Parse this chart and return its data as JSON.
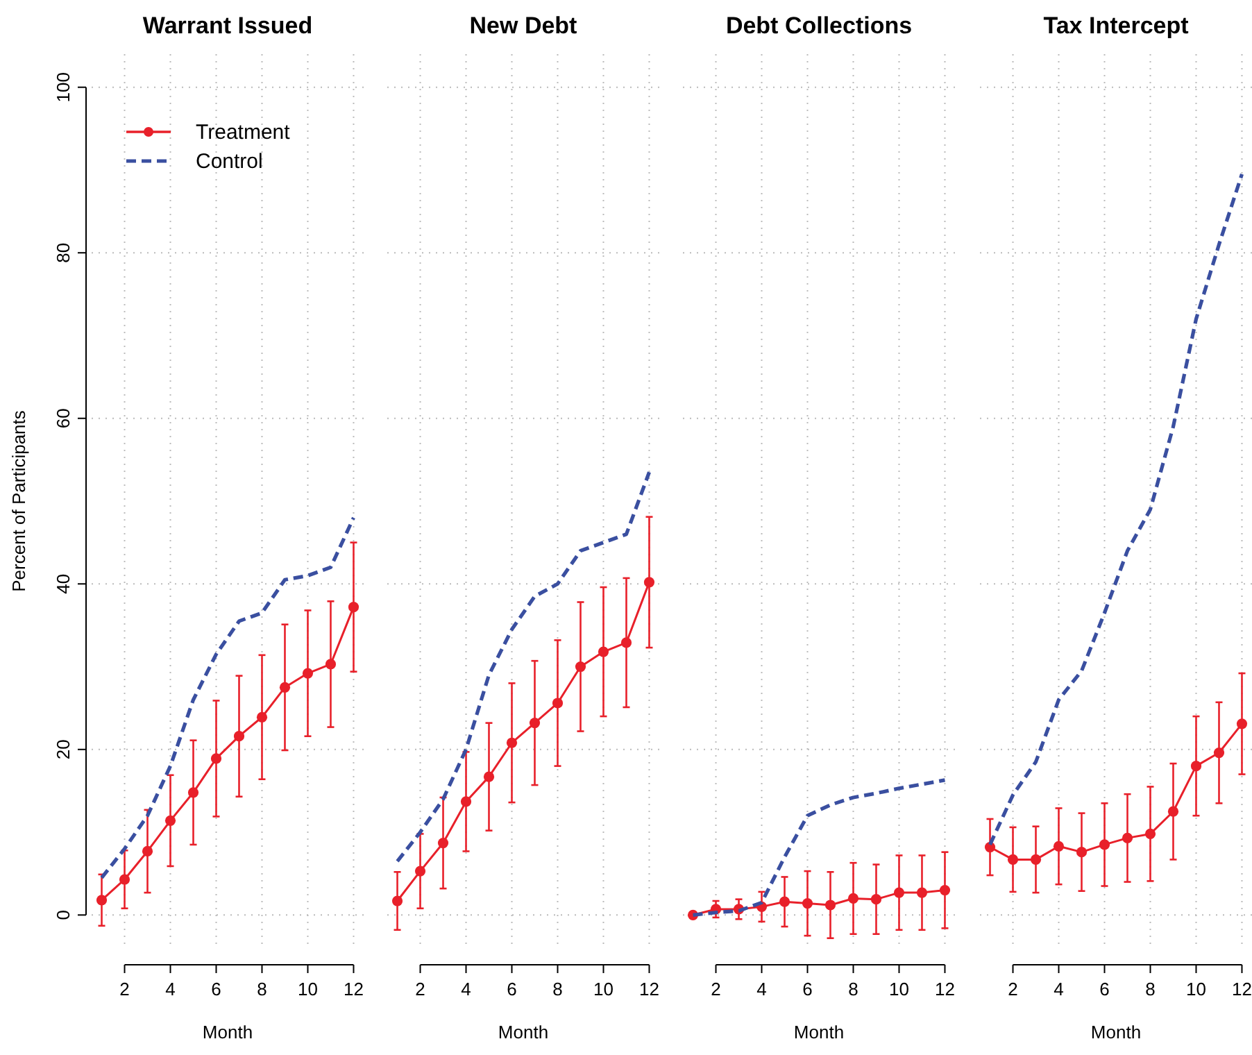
{
  "chart_data": [
    {
      "type": "line",
      "title": "Warrant Issued",
      "xlabel": "Month",
      "ylabel": "Percent of Participants",
      "x": [
        1,
        2,
        3,
        4,
        5,
        6,
        7,
        8,
        9,
        10,
        11,
        12
      ],
      "xlim": [
        0.56,
        12.44
      ],
      "ylim": [
        -4,
        104
      ],
      "xticks": [
        2,
        4,
        6,
        8,
        10,
        12
      ],
      "yticks": [
        0,
        20,
        40,
        60,
        80,
        100
      ],
      "grid": true,
      "legend": "top left",
      "series": [
        {
          "name": "Treatment",
          "color": "#e8202a",
          "marker": "circle",
          "line_style": "solid",
          "values": [
            1.8,
            4.3,
            7.7,
            11.4,
            14.8,
            18.9,
            21.6,
            23.9,
            27.5,
            29.2,
            30.3,
            37.2
          ],
          "errors": [
            3.1,
            3.5,
            5,
            5.5,
            6.3,
            7,
            7.3,
            7.5,
            7.6,
            7.6,
            7.6,
            7.8
          ]
        },
        {
          "name": "Control",
          "color": "#3a4fa0",
          "marker": "none",
          "line_style": "dashed",
          "values": [
            4.5,
            8,
            12,
            18,
            26,
            31.5,
            35.5,
            36.5,
            40.5,
            41,
            42,
            48
          ]
        }
      ]
    },
    {
      "type": "line",
      "title": "New Debt",
      "xlabel": "Month",
      "x": [
        1,
        2,
        3,
        4,
        5,
        6,
        7,
        8,
        9,
        10,
        11,
        12
      ],
      "xlim": [
        0.56,
        12.44
      ],
      "ylim": [
        -4,
        104
      ],
      "xticks": [
        2,
        4,
        6,
        8,
        10,
        12
      ],
      "yticks": [
        0,
        20,
        40,
        60,
        80,
        100
      ],
      "grid": true,
      "tick_labels": "x",
      "series": [
        {
          "color": "#e8202a",
          "marker": "circle",
          "line_style": "solid",
          "values": [
            1.7,
            5.3,
            8.7,
            13.7,
            16.7,
            20.8,
            23.2,
            25.6,
            30,
            31.8,
            32.9,
            40.2
          ],
          "errors": [
            3.5,
            4.5,
            5.5,
            6,
            6.5,
            7.2,
            7.5,
            7.6,
            7.8,
            7.8,
            7.8,
            7.9
          ]
        },
        {
          "color": "#3a4fa0",
          "marker": "none",
          "line_style": "dashed",
          "values": [
            6.5,
            10,
            14,
            20,
            29,
            34.5,
            38.5,
            40,
            44,
            45,
            46,
            53.5
          ]
        }
      ]
    },
    {
      "type": "line",
      "title": "Debt Collections",
      "xlabel": "Month",
      "x": [
        1,
        2,
        3,
        4,
        5,
        6,
        7,
        8,
        9,
        10,
        11,
        12
      ],
      "xlim": [
        0.56,
        12.44
      ],
      "ylim": [
        -4,
        104
      ],
      "xticks": [
        2,
        4,
        6,
        8,
        10,
        12
      ],
      "yticks": [
        0,
        20,
        40,
        60,
        80,
        100
      ],
      "grid": true,
      "tick_labels": "x",
      "series": [
        {
          "color": "#e8202a",
          "marker": "circle",
          "line_style": "solid",
          "values": [
            0,
            0.7,
            0.7,
            1,
            1.6,
            1.4,
            1.2,
            2,
            1.9,
            2.7,
            2.7,
            3
          ],
          "errors": [
            0,
            1,
            1.2,
            1.8,
            3,
            3.9,
            4,
            4.3,
            4.2,
            4.5,
            4.5,
            4.6
          ]
        },
        {
          "color": "#3a4fa0",
          "marker": "none",
          "line_style": "dashed",
          "values": [
            0,
            0.3,
            0.5,
            1.5,
            7,
            12,
            13.3,
            14.2,
            14.7,
            15.3,
            15.8,
            16.3
          ]
        }
      ]
    },
    {
      "type": "line",
      "title": "Tax Intercept",
      "xlabel": "Month",
      "x": [
        1,
        2,
        3,
        4,
        5,
        6,
        7,
        8,
        9,
        10,
        11,
        12
      ],
      "xlim": [
        0.56,
        12.44
      ],
      "ylim": [
        -4,
        104
      ],
      "xticks": [
        2,
        4,
        6,
        8,
        10,
        12
      ],
      "yticks": [
        0,
        20,
        40,
        60,
        80,
        100
      ],
      "grid": true,
      "tick_labels": "x",
      "series": [
        {
          "color": "#e8202a",
          "marker": "circle",
          "line_style": "solid",
          "values": [
            8.2,
            6.7,
            6.7,
            8.3,
            7.6,
            8.5,
            9.3,
            9.8,
            12.5,
            18,
            19.6,
            23.1
          ],
          "errors": [
            3.4,
            3.9,
            4,
            4.6,
            4.7,
            5,
            5.3,
            5.7,
            5.8,
            6,
            6.1,
            6.1
          ]
        },
        {
          "color": "#3a4fa0",
          "marker": "none",
          "line_style": "dashed",
          "values": [
            8.5,
            14.5,
            18.5,
            26,
            29.5,
            36.5,
            44,
            49,
            59,
            72,
            81,
            89.5
          ]
        }
      ]
    }
  ]
}
